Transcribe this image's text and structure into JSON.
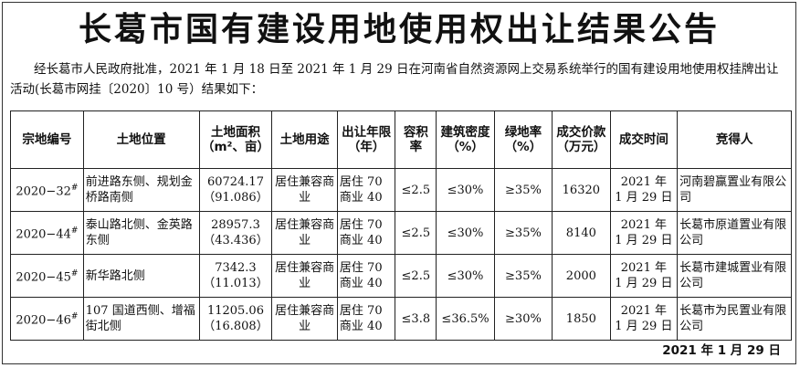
{
  "title": "长葛市国有建设用地使用权出让结果公告",
  "intro": "经长葛市人民政府批准，2021 年 1 月 18 日至 2021 年 1 月 29 日在河南省自然资源网上交易系统举行的国有建设用地使用权挂牌出让活动(长葛市网挂〔2020〕10 号）结果如下：",
  "table": {
    "headers": {
      "id": "宗地编号",
      "location": "土地位置",
      "area": "土地面积（m²、亩）",
      "use": "土地用途",
      "term": "出让年限（年）",
      "far": "容积率",
      "density": "建筑密度（%）",
      "green": "绿地率（%）",
      "price": "成交价款（万元）",
      "time": "成交时间",
      "winner": "竞得人"
    },
    "rows": [
      {
        "id": "2020−32",
        "mark": "#",
        "location": "前进路东侧、规划金桥路南侧",
        "area_m2": "60724.17",
        "area_mu": "（91.086）",
        "use": "居住兼容商业",
        "term_1": "居住 70",
        "term_2": "商业 40",
        "far": "≤2.5",
        "density": "≤30%",
        "green": "≥35%",
        "price": "16320",
        "time_1": "2021 年",
        "time_2": "1 月 29 日",
        "winner": "河南碧赢置业有限公司"
      },
      {
        "id": "2020−44",
        "mark": "#",
        "location": "泰山路北侧、金英路东侧",
        "area_m2": "28957.3",
        "area_mu": "（43.436）",
        "use": "居住兼容商业",
        "term_1": "居住 70",
        "term_2": "商业 40",
        "far": "≤2.5",
        "density": "≤30%",
        "green": "≥35%",
        "price": "8140",
        "time_1": "2021 年",
        "time_2": "1 月 29 日",
        "winner": "长葛市原道置业有限公司"
      },
      {
        "id": "2020−45",
        "mark": "#",
        "location": "新华路北侧",
        "area_m2": "7342.3",
        "area_mu": "（11.013）",
        "use": "居住兼容商业",
        "term_1": "居住 70",
        "term_2": "商业 40",
        "far": "≤2.5",
        "density": "≤30%",
        "green": "≥35%",
        "price": "2000",
        "time_1": "2021 年",
        "time_2": "1 月 29 日",
        "winner": "长葛市建城置业有限公司"
      },
      {
        "id": "2020−46",
        "mark": "#",
        "location": "107 国道西侧、增福街北侧",
        "area_m2": "11205.06",
        "area_mu": "（16.808）",
        "use": "居住兼容商业",
        "term_1": "居住 70",
        "term_2": "商业 40",
        "far": "≤3.8",
        "density": "≤36.5%",
        "green": "≥30%",
        "price": "1850",
        "time_1": "2021 年",
        "time_2": "1 月 29 日",
        "winner": "长葛市为民置业有限公司"
      }
    ]
  },
  "footer_date": "2021 年 1 月 29 日"
}
